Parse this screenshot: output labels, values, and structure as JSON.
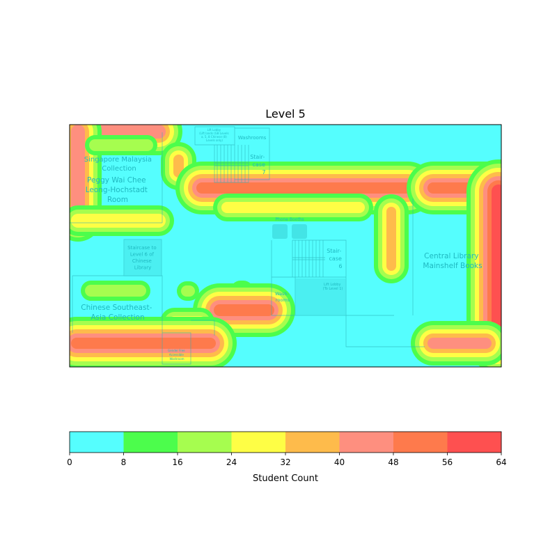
{
  "chart_data": {
    "type": "heatmap",
    "title": "Level 5",
    "x_range": [
      0,
      620
    ],
    "y_range": [
      0,
      348
    ],
    "colorbar": {
      "label": "Student Count",
      "bounds": [
        0,
        8,
        16,
        24,
        32,
        40,
        48,
        56,
        64
      ],
      "tick_labels": [
        "0",
        "8",
        "16",
        "24",
        "32",
        "40",
        "48",
        "56",
        "64"
      ],
      "colors": [
        "#55fefe",
        "#4cfd4c",
        "#a6fd4f",
        "#fefe45",
        "#febb4b",
        "#fe8f7f",
        "#fe7a4c",
        "#fe5050"
      ]
    },
    "background_level": 4,
    "hotspots": [
      {
        "name": "top-left-band",
        "x0": 8,
        "y0": 6,
        "x1": 132,
        "y1": 14,
        "value": 40
      },
      {
        "name": "left-vertical-band",
        "x0": 8,
        "y0": 6,
        "x1": 16,
        "y1": 138,
        "value": 40
      },
      {
        "name": "left-lower-band",
        "x0": 8,
        "y0": 134,
        "x1": 132,
        "y1": 142,
        "value": 30
      },
      {
        "name": "singapore-collection-band",
        "x0": 34,
        "y0": 27,
        "x1": 114,
        "y1": 32,
        "value": 22
      },
      {
        "name": "small-spot-a",
        "x0": 155,
        "y0": 49,
        "x1": 158,
        "y1": 70,
        "value": 38
      },
      {
        "name": "central-long-band",
        "x0": 188,
        "y0": 89,
        "x1": 488,
        "y1": 93,
        "value": 52
      },
      {
        "name": "phone-booth-band",
        "x0": 224,
        "y0": 117,
        "x1": 418,
        "y1": 121,
        "value": 24
      },
      {
        "name": "staircase6-vertical",
        "x0": 461,
        "y0": 124,
        "x1": 463,
        "y1": 204,
        "value": 38
      },
      {
        "name": "right-horizontal-band",
        "x0": 520,
        "y0": 89,
        "x1": 600,
        "y1": 93,
        "value": 50
      },
      {
        "name": "right-vertical-band",
        "x0": 600,
        "y0": 89,
        "x1": 604,
        "y1": 314,
        "value": 28
      },
      {
        "name": "right-edge-hot",
        "x0": 612,
        "y0": 92,
        "x1": 620,
        "y1": 314,
        "value": 64
      },
      {
        "name": "right-bottom-band",
        "x0": 520,
        "y0": 312,
        "x1": 600,
        "y1": 316,
        "value": 40
      },
      {
        "name": "chinese-collection-band",
        "x0": 28,
        "y0": 236,
        "x1": 104,
        "y1": 241,
        "value": 22
      },
      {
        "name": "small-spot-b",
        "x0": 166,
        "y0": 237,
        "x1": 174,
        "y1": 241,
        "value": 22
      },
      {
        "name": "small-spot-c",
        "x0": 243,
        "y0": 236,
        "x1": 252,
        "y1": 241,
        "value": 22
      },
      {
        "name": "washroom-band",
        "x0": 213,
        "y0": 264,
        "x1": 288,
        "y1": 269,
        "value": 52
      },
      {
        "name": "lower-mid-band",
        "x0": 148,
        "y0": 281,
        "x1": 190,
        "y1": 286,
        "value": 24
      },
      {
        "name": "bottom-left-band",
        "x0": 8,
        "y0": 312,
        "x1": 204,
        "y1": 316,
        "value": 50
      }
    ],
    "floorplan_labels": [
      {
        "name": "singapore-malaysia-collection",
        "lines": [
          "Singapore Malaysia",
          "Collection"
        ]
      },
      {
        "name": "peggy-wai-chee-room",
        "lines": [
          "Peggy Wai Chee",
          "Leong-Hochstadt",
          "Room"
        ]
      },
      {
        "name": "staircase-to-level6",
        "lines": [
          "Staircase to",
          "Level 6 of",
          "Chinese",
          "Library"
        ]
      },
      {
        "name": "chinese-southeast-asia-collection",
        "lines": [
          "Chinese Southeast-",
          "Asia Collection"
        ]
      },
      {
        "name": "staircase-7",
        "lines": [
          "Stair-",
          "case",
          "7"
        ]
      },
      {
        "name": "staircase-6",
        "lines": [
          "Stair-",
          "case",
          "6"
        ]
      },
      {
        "name": "washrooms-top",
        "lines": [
          "Washrooms"
        ]
      },
      {
        "name": "washrooms-mid",
        "lines": [
          "Wash-",
          "rooms"
        ]
      },
      {
        "name": "phone-booths",
        "lines": [
          "Phone Booths"
        ]
      },
      {
        "name": "lift-lobby-top",
        "lines": [
          "Lift Lobby",
          "(Lift lands (GB Levels",
          "a, 5, 8 Chinese (8)",
          "Levels only)"
        ]
      },
      {
        "name": "lift-lobby-mid",
        "lines": [
          "Lift Lobby",
          "(To Level 1)"
        ]
      },
      {
        "name": "central-library-mainshelf",
        "lines": [
          "Central Library",
          "Mainshelf Books"
        ]
      },
      {
        "name": "accessible-washroom",
        "lines": [
          "Gender Free",
          "Accessible",
          "Washroom"
        ]
      }
    ]
  }
}
